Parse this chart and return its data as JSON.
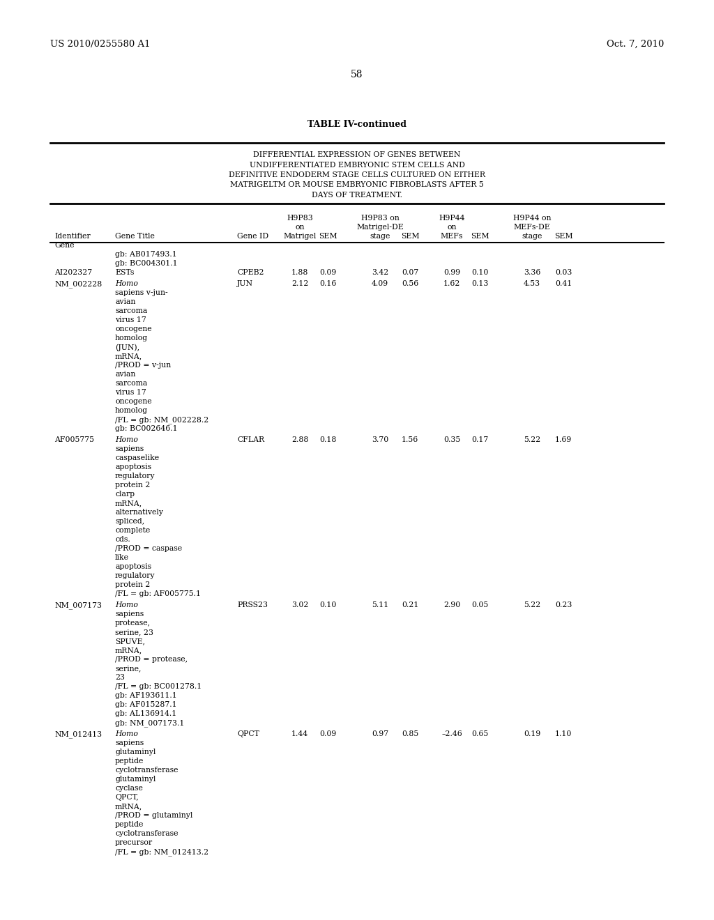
{
  "patent_left": "US 2010/0255580 A1",
  "patent_right": "Oct. 7, 2010",
  "page_number": "58",
  "table_title": "TABLE IV-continued",
  "table_subtitle_lines": [
    "DIFFERENTIAL EXPRESSION OF GENES BETWEEN",
    "UNDIFFERENTIATED EMBRYONIC STEM CELLS AND",
    "DEFINITIVE ENDODERM STAGE CELLS CULTURED ON EITHER",
    "MATRIGELTM OR MOUSE EMBRYONIC FIBROBLASTS AFTER 5",
    "DAYS OF TREATMENT."
  ],
  "background_color": "#ffffff",
  "text_color": "#000000",
  "rows": [
    {
      "gene_id": "AI202327",
      "pre_title_lines": [
        "gb: AB017493.1",
        "gb: BC004301.1"
      ],
      "first_title_line": "ESTs",
      "more_title_lines": [],
      "gene_id_col": "CPEB2",
      "v1": "1.88",
      "v2": "0.09",
      "v3": "3.42",
      "v4": "0.07",
      "v5": "0.99",
      "v6": "0.10",
      "v7": "3.36",
      "v8": "0.03"
    },
    {
      "gene_id": "NM_002228",
      "pre_title_lines": [],
      "first_title_line": "Homo",
      "more_title_lines": [
        "sapiens v-jun-",
        "avian",
        "sarcoma",
        "virus 17",
        "oncogene",
        "homolog",
        "(JUN),",
        "mRNA,",
        "/PROD = v-jun",
        "avian",
        "sarcoma",
        "virus 17",
        "oncogene",
        "homolog",
        "/FL = gb: NM_002228.2",
        "gb: BC002646.1"
      ],
      "gene_id_col": "JUN",
      "v1": "2.12",
      "v2": "0.16",
      "v3": "4.09",
      "v4": "0.56",
      "v5": "1.62",
      "v6": "0.13",
      "v7": "4.53",
      "v8": "0.41"
    },
    {
      "gene_id": "AF005775",
      "pre_title_lines": [],
      "first_title_line": "Homo",
      "more_title_lines": [
        "sapiens",
        "caspaselike",
        "apoptosis",
        "regulatory",
        "protein 2",
        "clarp",
        "mRNA,",
        "alternatively",
        "spliced,",
        "complete",
        "cds.",
        "/PROD = caspase",
        "like",
        "apoptosis",
        "regulatory",
        "protein 2",
        "/FL = gb: AF005775.1"
      ],
      "gene_id_col": "CFLAR",
      "v1": "2.88",
      "v2": "0.18",
      "v3": "3.70",
      "v4": "1.56",
      "v5": "0.35",
      "v6": "0.17",
      "v7": "5.22",
      "v8": "1.69"
    },
    {
      "gene_id": "NM_007173",
      "pre_title_lines": [],
      "first_title_line": "Homo",
      "more_title_lines": [
        "sapiens",
        "protease,",
        "serine, 23",
        "SPUVE,",
        "mRNA,",
        "/PROD = protease,",
        "serine,",
        "23",
        "/FL = gb: BC001278.1",
        "gb: AF193611.1",
        "gb: AF015287.1",
        "gb: AL136914.1",
        "gb: NM_007173.1"
      ],
      "gene_id_col": "PRSS23",
      "v1": "3.02",
      "v2": "0.10",
      "v3": "5.11",
      "v4": "0.21",
      "v5": "2.90",
      "v6": "0.05",
      "v7": "5.22",
      "v8": "0.23"
    },
    {
      "gene_id": "NM_012413",
      "pre_title_lines": [],
      "first_title_line": "Homo",
      "more_title_lines": [
        "sapiens",
        "glutaminyl",
        "peptide",
        "cyclotransferase",
        "glutaminyl",
        "cyclase",
        "QPCT,",
        "mRNA,",
        "/PROD = glutaminyl",
        "peptide",
        "cyclotransferase",
        "precursor",
        "/FL = gb: NM_012413.2"
      ],
      "gene_id_col": "QPCT",
      "v1": "1.44",
      "v2": "0.09",
      "v3": "0.97",
      "v4": "0.85",
      "v5": "–2.46",
      "v6": "0.65",
      "v7": "0.19",
      "v8": "1.10"
    }
  ]
}
